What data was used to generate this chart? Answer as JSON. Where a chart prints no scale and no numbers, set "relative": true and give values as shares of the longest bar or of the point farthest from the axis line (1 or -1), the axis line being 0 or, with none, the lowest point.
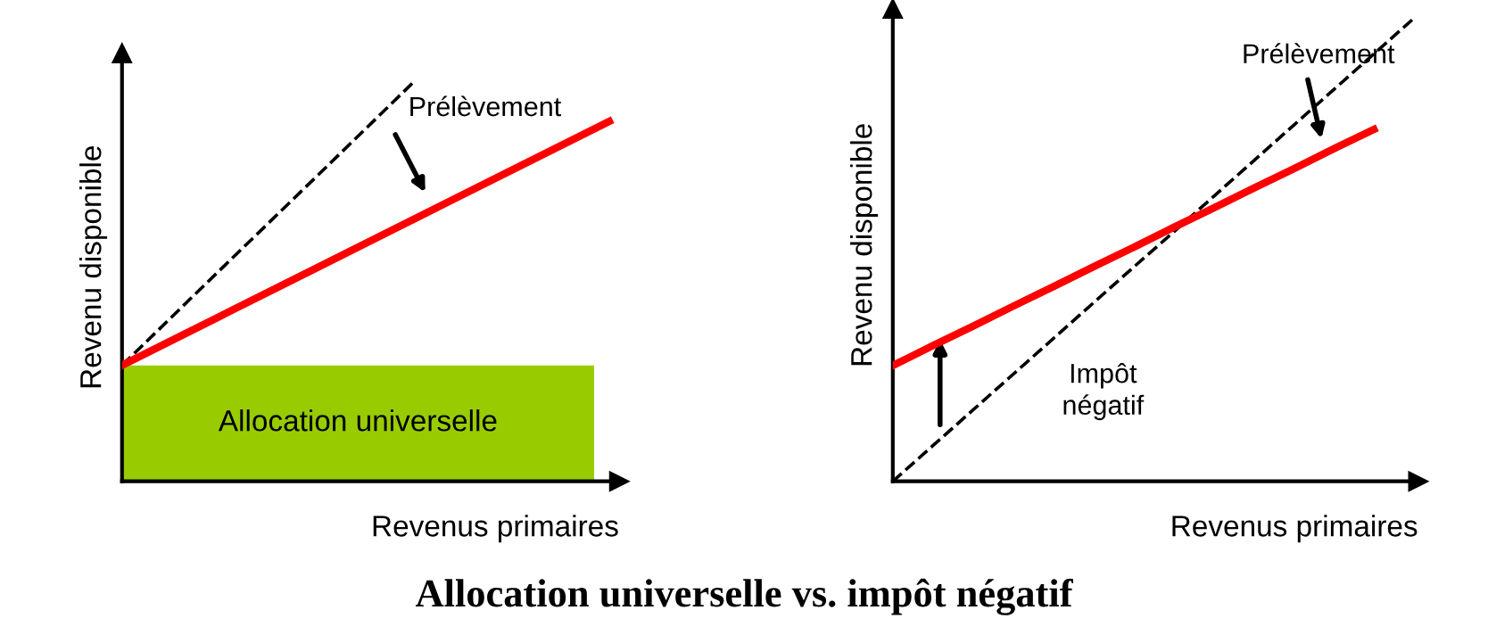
{
  "chart_data": [
    {
      "type": "line",
      "relative": true,
      "title": "Allocation universelle vs. impôt négatif",
      "xlabel": "Revenus primaires",
      "ylabel": "Revenu disponible",
      "marker": "none",
      "categories": [
        null,
        null,
        null,
        null,
        null,
        null
      ],
      "series": [
        {
          "color": "#000000",
          "line_style": "dashed",
          "values": [
            0.29,
            0.527,
            0.763,
            1.0,
            null,
            null
          ]
        },
        {
          "color": "#ff0000",
          "line_style": "solid",
          "values": [
            0.29,
            0.412,
            0.534,
            0.656,
            0.778,
            0.9
          ]
        }
      ],
      "bands": [
        {
          "axis": "y",
          "from": 0,
          "to": 0.29,
          "label": "Allocation universelle",
          "color": "#99cc00"
        }
      ],
      "annotations": [
        "Prélèvement"
      ]
    },
    {
      "type": "line",
      "relative": true,
      "xlabel": "Revenus primaires",
      "ylabel": "Revenu disponible",
      "marker": "none",
      "categories": [
        null,
        null,
        null,
        null,
        null,
        null,
        null,
        null,
        null,
        null,
        null,
        null,
        null,
        null
      ],
      "series": [
        {
          "color": "#000000",
          "line_style": "dashed",
          "values": [
            0,
            0.077,
            0.154,
            0.231,
            0.308,
            0.385,
            0.462,
            0.538,
            0.615,
            0.692,
            0.769,
            0.846,
            0.923,
            1.0
          ]
        },
        {
          "color": "#ff0000",
          "line_style": "solid",
          "values": [
            0.25,
            0.293,
            0.335,
            0.378,
            0.42,
            0.463,
            0.505,
            0.548,
            0.59,
            0.633,
            0.675,
            0.718,
            0.76,
            null
          ]
        }
      ],
      "annotations": [
        "Prélèvement",
        "Impôt\nnégatif"
      ]
    }
  ]
}
